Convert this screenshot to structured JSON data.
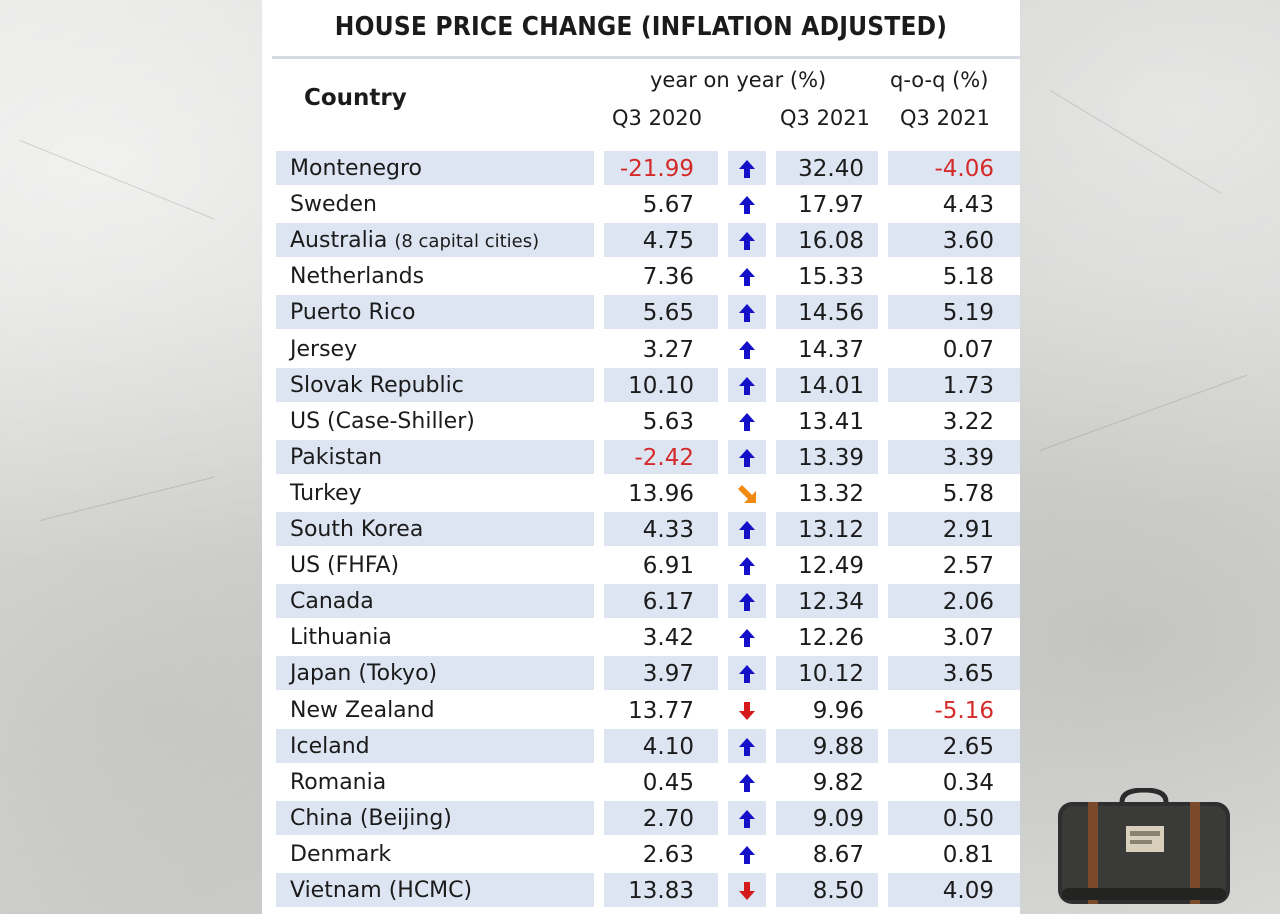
{
  "title": "HOUSE PRICE CHANGE (INFLATION ADJUSTED)",
  "header": {
    "country": "Country",
    "yoy_group": "year on year (%)",
    "qoq_group": "q-o-q (%)",
    "col_q3_2020": "Q3 2020",
    "col_q3_2021": "Q3 2021",
    "col_qoq_q3_2021": "Q3 2021"
  },
  "colors": {
    "negative": "#d42a2a",
    "arrow_up": "#1410c8",
    "arrow_down": "#d41a1a",
    "arrow_diag": "#f08a10",
    "row_shade": "#dde5f2"
  },
  "rows": [
    {
      "country": "Montenegro",
      "q3_2020": "-21.99",
      "trend": "up",
      "q3_2021": "32.40",
      "qoq": "-4.06"
    },
    {
      "country": "Sweden",
      "q3_2020": "5.67",
      "trend": "up",
      "q3_2021": "17.97",
      "qoq": "4.43"
    },
    {
      "country": "Australia",
      "country_note": "(8 capital cities)",
      "q3_2020": "4.75",
      "trend": "up",
      "q3_2021": "16.08",
      "qoq": "3.60"
    },
    {
      "country": "Netherlands",
      "q3_2020": "7.36",
      "trend": "up",
      "q3_2021": "15.33",
      "qoq": "5.18"
    },
    {
      "country": "Puerto Rico",
      "q3_2020": "5.65",
      "trend": "up",
      "q3_2021": "14.56",
      "qoq": "5.19"
    },
    {
      "country": "Jersey",
      "q3_2020": "3.27",
      "trend": "up",
      "q3_2021": "14.37",
      "qoq": "0.07"
    },
    {
      "country": "Slovak Republic",
      "q3_2020": "10.10",
      "trend": "up",
      "q3_2021": "14.01",
      "qoq": "1.73"
    },
    {
      "country": "US (Case-Shiller)",
      "q3_2020": "5.63",
      "trend": "up",
      "q3_2021": "13.41",
      "qoq": "3.22"
    },
    {
      "country": "Pakistan",
      "q3_2020": "-2.42",
      "trend": "up",
      "q3_2021": "13.39",
      "qoq": "3.39"
    },
    {
      "country": "Turkey",
      "q3_2020": "13.96",
      "trend": "down-diag",
      "q3_2021": "13.32",
      "qoq": "5.78"
    },
    {
      "country": "South Korea",
      "q3_2020": "4.33",
      "trend": "up",
      "q3_2021": "13.12",
      "qoq": "2.91"
    },
    {
      "country": "US (FHFA)",
      "q3_2020": "6.91",
      "trend": "up",
      "q3_2021": "12.49",
      "qoq": "2.57"
    },
    {
      "country": "Canada",
      "q3_2020": "6.17",
      "trend": "up",
      "q3_2021": "12.34",
      "qoq": "2.06"
    },
    {
      "country": "Lithuania",
      "q3_2020": "3.42",
      "trend": "up",
      "q3_2021": "12.26",
      "qoq": "3.07"
    },
    {
      "country": "Japan (Tokyo)",
      "q3_2020": "3.97",
      "trend": "up",
      "q3_2021": "10.12",
      "qoq": "3.65"
    },
    {
      "country": "New Zealand",
      "q3_2020": "13.77",
      "trend": "down",
      "q3_2021": "9.96",
      "qoq": "-5.16"
    },
    {
      "country": "Iceland",
      "q3_2020": "4.10",
      "trend": "up",
      "q3_2021": "9.88",
      "qoq": "2.65"
    },
    {
      "country": "Romania",
      "q3_2020": "0.45",
      "trend": "up",
      "q3_2021": "9.82",
      "qoq": "0.34"
    },
    {
      "country": "China (Beijing)",
      "q3_2020": "2.70",
      "trend": "up",
      "q3_2021": "9.09",
      "qoq": "0.50"
    },
    {
      "country": "Denmark",
      "q3_2020": "2.63",
      "trend": "up",
      "q3_2021": "8.67",
      "qoq": "0.81"
    },
    {
      "country": "Vietnam (HCMC)",
      "q3_2020": "13.83",
      "trend": "down",
      "q3_2021": "8.50",
      "qoq": "4.09"
    }
  ],
  "chart_data": {
    "type": "table",
    "title": "HOUSE PRICE CHANGE (INFLATION ADJUSTED)",
    "columns": [
      "Country",
      "Q3 2020",
      "Q3 2021",
      "Q3 2021"
    ],
    "column_groups": [
      "year on year (%)",
      "q-o-q (%)"
    ],
    "rows": [
      [
        "Montenegro",
        -21.99,
        32.4,
        -4.06
      ],
      [
        "Sweden",
        5.67,
        17.97,
        4.43
      ],
      [
        "Australia (8 capital cities)",
        4.75,
        16.08,
        3.6
      ],
      [
        "Netherlands",
        7.36,
        15.33,
        5.18
      ],
      [
        "Puerto Rico",
        5.65,
        14.56,
        5.19
      ],
      [
        "Jersey",
        3.27,
        14.37,
        0.07
      ],
      [
        "Slovak Republic",
        10.1,
        14.01,
        1.73
      ],
      [
        "US (Case-Shiller)",
        5.63,
        13.41,
        3.22
      ],
      [
        "Pakistan",
        -2.42,
        13.39,
        3.39
      ],
      [
        "Turkey",
        13.96,
        13.32,
        5.78
      ],
      [
        "South Korea",
        4.33,
        13.12,
        2.91
      ],
      [
        "US (FHFA)",
        6.91,
        12.49,
        2.57
      ],
      [
        "Canada",
        6.17,
        12.34,
        2.06
      ],
      [
        "Lithuania",
        3.42,
        12.26,
        3.07
      ],
      [
        "Japan (Tokyo)",
        3.97,
        10.12,
        3.65
      ],
      [
        "New Zealand",
        13.77,
        9.96,
        -5.16
      ],
      [
        "Iceland",
        4.1,
        9.88,
        2.65
      ],
      [
        "Romania",
        0.45,
        9.82,
        0.34
      ],
      [
        "China (Beijing)",
        2.7,
        9.09,
        0.5
      ],
      [
        "Denmark",
        2.63,
        8.67,
        0.81
      ],
      [
        "Vietnam (HCMC)",
        13.83,
        8.5,
        4.09
      ]
    ]
  }
}
